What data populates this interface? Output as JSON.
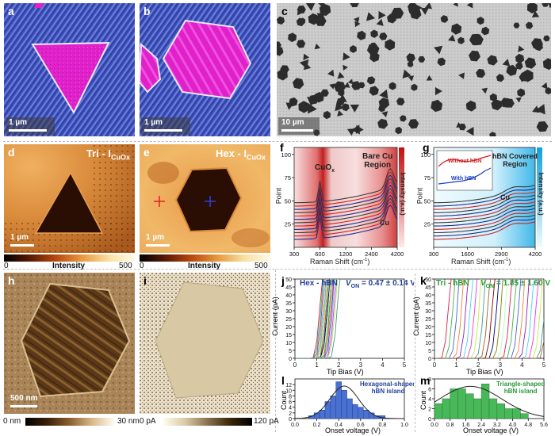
{
  "panels": {
    "a": {
      "label": "a",
      "scalebar": "1 µm"
    },
    "b": {
      "label": "b",
      "scalebar": "1 µm"
    },
    "c": {
      "label": "c",
      "scalebar": "10 µm"
    },
    "d": {
      "label": "d",
      "title": "Tri - I",
      "title_sub": "CuOx",
      "scalebar": "1 µm",
      "colorbar": {
        "min": "0",
        "label": "Intensity",
        "max": "500"
      }
    },
    "e": {
      "label": "e",
      "title": "Hex - I",
      "title_sub": "CuOx",
      "scalebar": "1 µm",
      "colorbar": {
        "min": "0",
        "label": "Intensity",
        "max": "500"
      }
    },
    "f": {
      "label": "f",
      "region_title_1": "Bare Cu",
      "region_title_2": "Region",
      "peak_label_main": "CuO",
      "peak_label_sub": "x",
      "cu_label": "Cu",
      "xlabel": "Raman Shift (cm",
      "xlabel_sup": "-1",
      "xlabel_end": ")",
      "ylabel": "Point",
      "zlabel": "Intensity (a.u.)",
      "xticks": [
        "300",
        "600",
        "1200",
        "2400",
        "4200"
      ],
      "yticks": [
        "25",
        "50",
        "75",
        "100"
      ]
    },
    "g": {
      "label": "g",
      "region_title_1": "hBN Covered",
      "region_title_2": "Region",
      "cu_label": "Cu",
      "inset_without": "Without hBN",
      "inset_with": "With hBN",
      "xlabel": "Raman Shift (cm",
      "xlabel_sup": "-1",
      "xlabel_end": ")",
      "ylabel": "Point",
      "zlabel": "Intensity (a.u.)",
      "xticks": [
        "300",
        "1600",
        "2900",
        "4200"
      ],
      "yticks": [
        "25",
        "50",
        "75",
        "100"
      ]
    },
    "h": {
      "label": "h",
      "scalebar": "500 nm",
      "colorbar": {
        "min": "0 nm",
        "max": "30 nm"
      }
    },
    "i": {
      "label": "i",
      "colorbar": {
        "min": "0 pA",
        "max": "120 pA"
      }
    },
    "j": {
      "label": "j",
      "title": "Hex - hBN",
      "von_label": "V",
      "von_sub": "ON",
      "von_value": " = 0.47 ± 0.14 V",
      "xlabel": "Tip Bias (V)",
      "ylabel": "Current (pA)"
    },
    "k": {
      "label": "k",
      "title": "Tri - hBN",
      "von_label": "V",
      "von_sub": "ON",
      "von_value": " = 1.85 ± 1.60 V",
      "xlabel": "Tip Bias (V)",
      "ylabel": "Current (pA)"
    },
    "l": {
      "label": "l",
      "legend_1": "Hexagonal-shaped",
      "legend_2": "hBN island",
      "xlabel": "Onset voltage (V)",
      "ylabel": "Count"
    },
    "m": {
      "label": "m",
      "legend_1": "Triangle-shaped",
      "legend_2": "hBN island",
      "xlabel": "Onset voltage (V)",
      "ylabel": "Count"
    }
  },
  "colors": {
    "hex_accent": "#1f3f9a",
    "tri_accent": "#2a9a3a",
    "magenta": "#e020c8"
  },
  "chart_data": [
    {
      "panel": "j",
      "type": "line",
      "title": "Hex - hBN",
      "xlabel": "Tip Bias (V)",
      "ylabel": "Current (pA)",
      "xlim": [
        0,
        5
      ],
      "ylim": [
        0,
        50
      ],
      "xticks": [
        0,
        1,
        2,
        3,
        4,
        5
      ],
      "yticks": [
        0,
        5,
        10,
        15,
        20,
        25,
        30,
        35,
        40,
        45,
        50
      ],
      "onsets": [
        0.8,
        0.85,
        0.9,
        0.95,
        1.0,
        1.0,
        1.05,
        1.05,
        1.1,
        1.1,
        1.15,
        1.15,
        1.2,
        1.2,
        1.25,
        1.25,
        1.3,
        1.3,
        1.35,
        1.4,
        1.45,
        1.5,
        1.6
      ]
    },
    {
      "panel": "k",
      "type": "line",
      "title": "Tri - hBN",
      "xlabel": "Tip Bias (V)",
      "ylabel": "Current (pA)",
      "xlim": [
        0,
        5
      ],
      "ylim": [
        0,
        50
      ],
      "xticks": [
        0,
        1,
        2,
        3,
        4,
        5
      ],
      "yticks": [
        0,
        5,
        10,
        15,
        20,
        25,
        30,
        35,
        40,
        45,
        50
      ],
      "onsets": [
        0.3,
        0.5,
        0.7,
        0.9,
        1.1,
        1.3,
        1.5,
        1.7,
        1.9,
        2.1,
        2.3,
        2.5,
        2.7,
        2.9,
        3.1,
        3.3,
        3.5,
        3.7,
        3.9,
        4.1,
        4.3,
        4.5,
        4.7,
        4.8
      ]
    },
    {
      "panel": "l",
      "type": "bar",
      "xlabel": "Onset voltage (V)",
      "ylabel": "Count",
      "xlim": [
        0,
        1.0
      ],
      "ylim": [
        0,
        14
      ],
      "xticks": [
        0.0,
        0.2,
        0.4,
        0.6,
        0.8,
        1.0
      ],
      "yticks": [
        0,
        2,
        4,
        6,
        8,
        10,
        12
      ],
      "bin_width": 0.05,
      "bins": [
        0.15,
        0.2,
        0.25,
        0.3,
        0.35,
        0.4,
        0.45,
        0.5,
        0.55,
        0.6,
        0.65,
        0.7,
        0.75,
        0.8
      ],
      "values": [
        1,
        2,
        3,
        6,
        8,
        13,
        10,
        7,
        5,
        4,
        3,
        2,
        1,
        1
      ],
      "fit": {
        "type": "gaussian",
        "mean": 0.45,
        "sigma": 0.13,
        "peak": 11.5
      }
    },
    {
      "panel": "m",
      "type": "bar",
      "xlabel": "Onset voltage (V)",
      "ylabel": "Count",
      "xlim": [
        0.0,
        5.6
      ],
      "ylim": [
        0,
        8
      ],
      "xticks": [
        0.0,
        0.8,
        1.6,
        2.4,
        3.2,
        4.0,
        4.8,
        5.6
      ],
      "yticks": [
        0,
        2,
        4,
        6,
        8
      ],
      "bin_width": 0.4,
      "bins": [
        0.2,
        0.6,
        1.0,
        1.4,
        1.8,
        2.2,
        2.6,
        3.0,
        3.4,
        3.8,
        4.2,
        4.6
      ],
      "values": [
        3,
        4,
        6,
        6,
        5,
        4,
        7,
        4,
        3,
        2,
        2,
        1
      ],
      "fit": {
        "type": "gaussian",
        "mean": 1.85,
        "sigma": 1.6,
        "peak": 6.5
      }
    }
  ]
}
